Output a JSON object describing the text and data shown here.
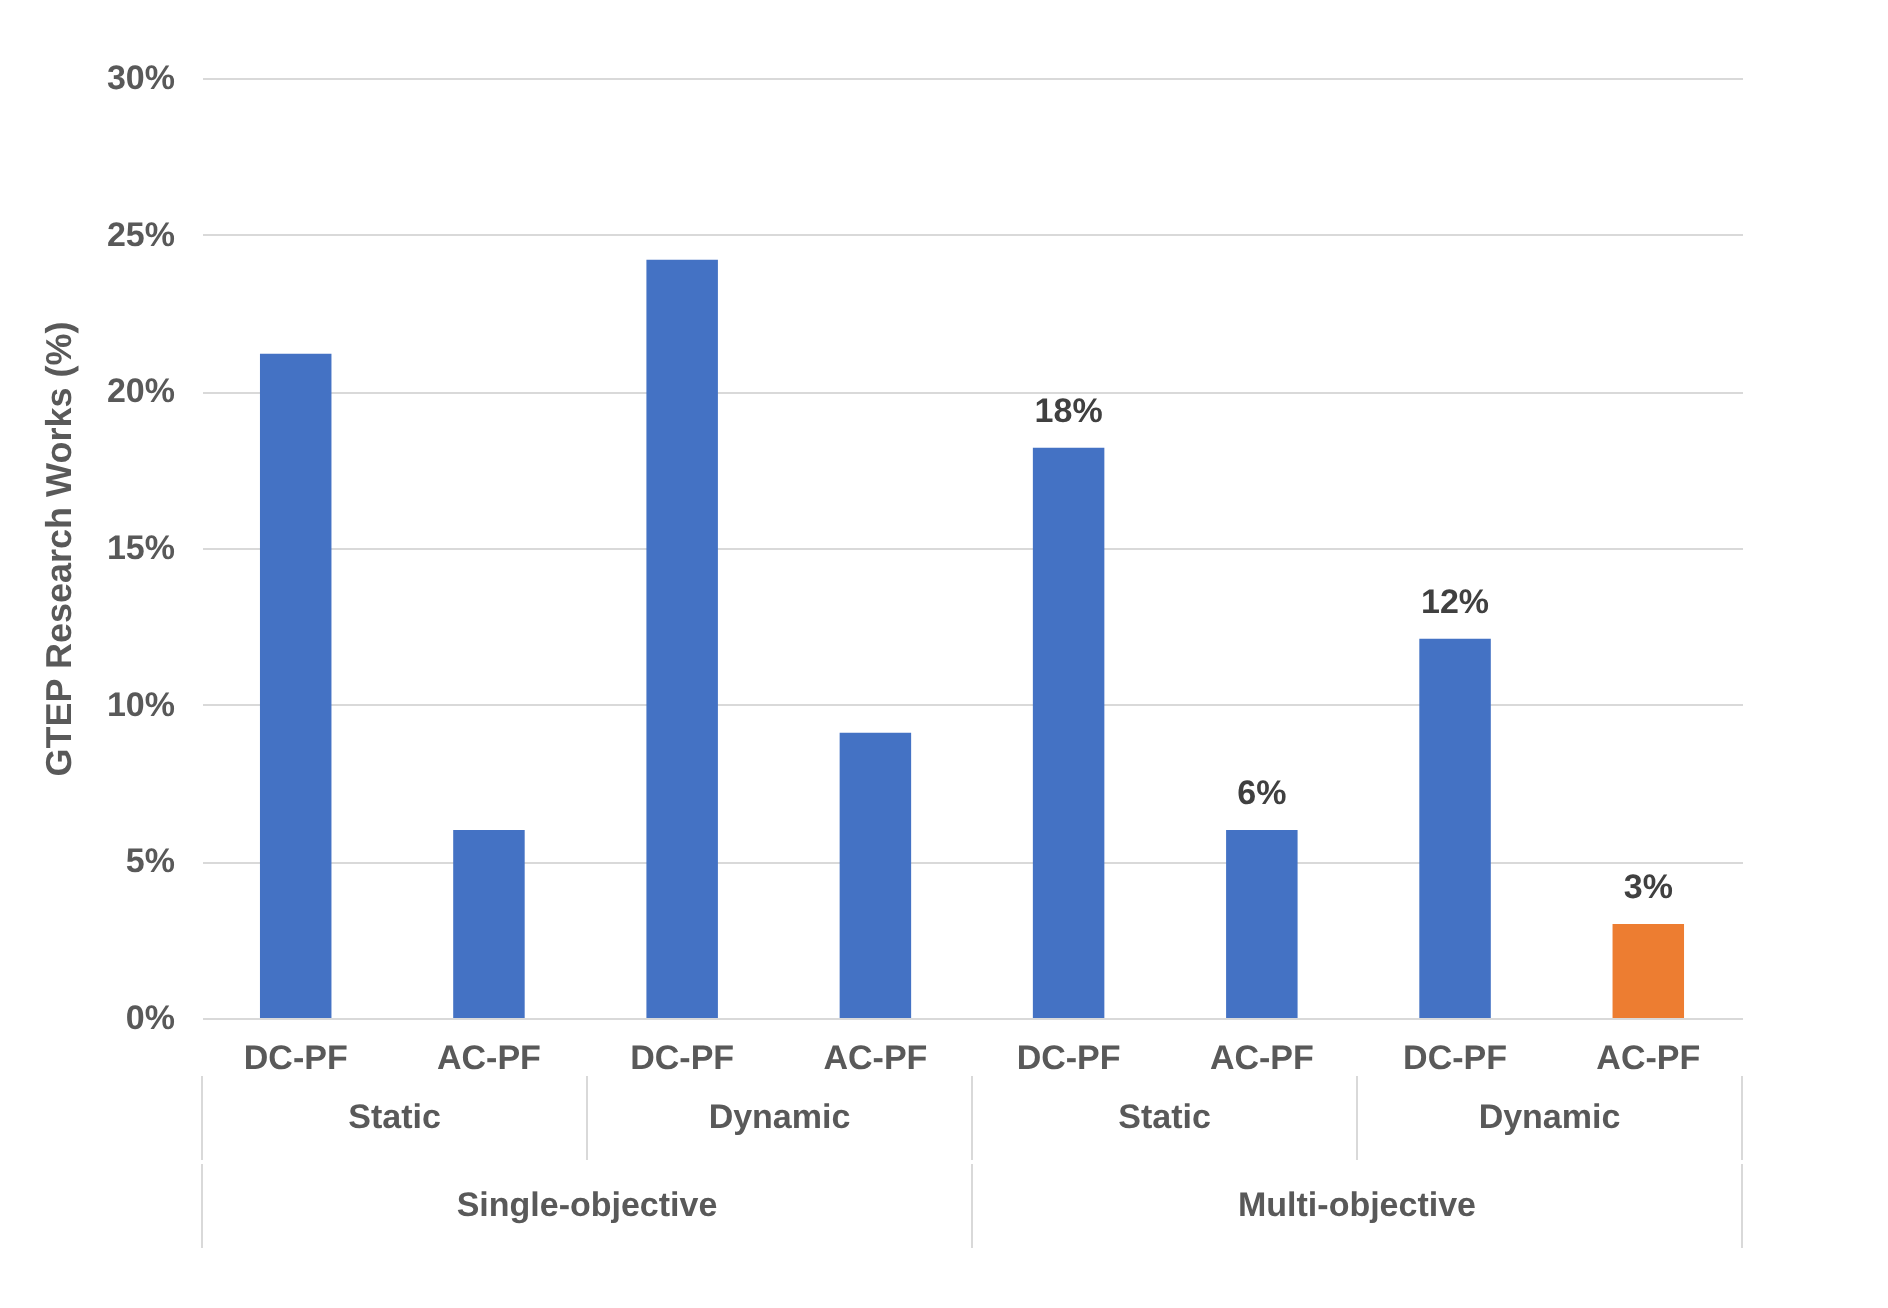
{
  "chart_data": {
    "type": "bar",
    "ylabel": "GTEP Research Works (%)",
    "categories": [
      "DC-PF",
      "AC-PF",
      "DC-PF",
      "AC-PF",
      "DC-PF",
      "AC-PF",
      "DC-PF",
      "AC-PF"
    ],
    "values": [
      21.2,
      6,
      24.2,
      9.1,
      18.2,
      6,
      12.1,
      3
    ],
    "colors": [
      "#4472c4",
      "#4472c4",
      "#4472c4",
      "#4472c4",
      "#4472c4",
      "#4472c4",
      "#4472c4",
      "#ed7d31"
    ],
    "value_labels": [
      null,
      null,
      null,
      null,
      "18%",
      "6%",
      "12%",
      "3%"
    ],
    "ylim": [
      0,
      30
    ],
    "yticks": [
      {
        "value": 0,
        "label": "0%"
      },
      {
        "value": 5,
        "label": "5%"
      },
      {
        "value": 10,
        "label": "10%"
      },
      {
        "value": 15,
        "label": "15%"
      },
      {
        "value": 20,
        "label": "20%"
      },
      {
        "value": 25,
        "label": "25%"
      },
      {
        "value": 30,
        "label": "30%"
      }
    ],
    "grid": "y",
    "annotations": [
      "Static",
      "Dynamic",
      "Static",
      "Dynamic",
      "Single-objective",
      "Multi-objective"
    ]
  }
}
